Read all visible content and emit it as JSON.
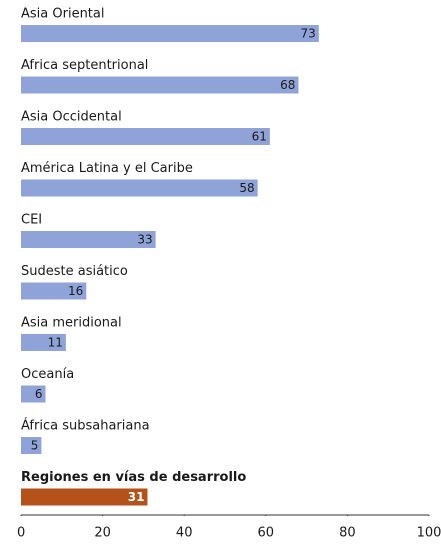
{
  "chart_data": {
    "type": "bar",
    "orientation": "horizontal",
    "categories": [
      "Asia Oriental",
      "Africa septentrional",
      "Asia Occidental",
      "América Latina y el Caribe",
      "CEI",
      "Sudeste asiático",
      "Asia meridional",
      "Oceanía",
      "África subsahariana",
      "Regiones en vías de desarrollo"
    ],
    "values": [
      73,
      68,
      61,
      58,
      33,
      16,
      11,
      6,
      5,
      31
    ],
    "colors": [
      "#8fa3d9",
      "#8fa3d9",
      "#8fa3d9",
      "#8fa3d9",
      "#8fa3d9",
      "#8fa3d9",
      "#8fa3d9",
      "#8fa3d9",
      "#8fa3d9",
      "#b3521a"
    ],
    "xlim": [
      0,
      100
    ],
    "xticks": [
      0,
      20,
      40,
      60,
      80,
      100
    ]
  }
}
